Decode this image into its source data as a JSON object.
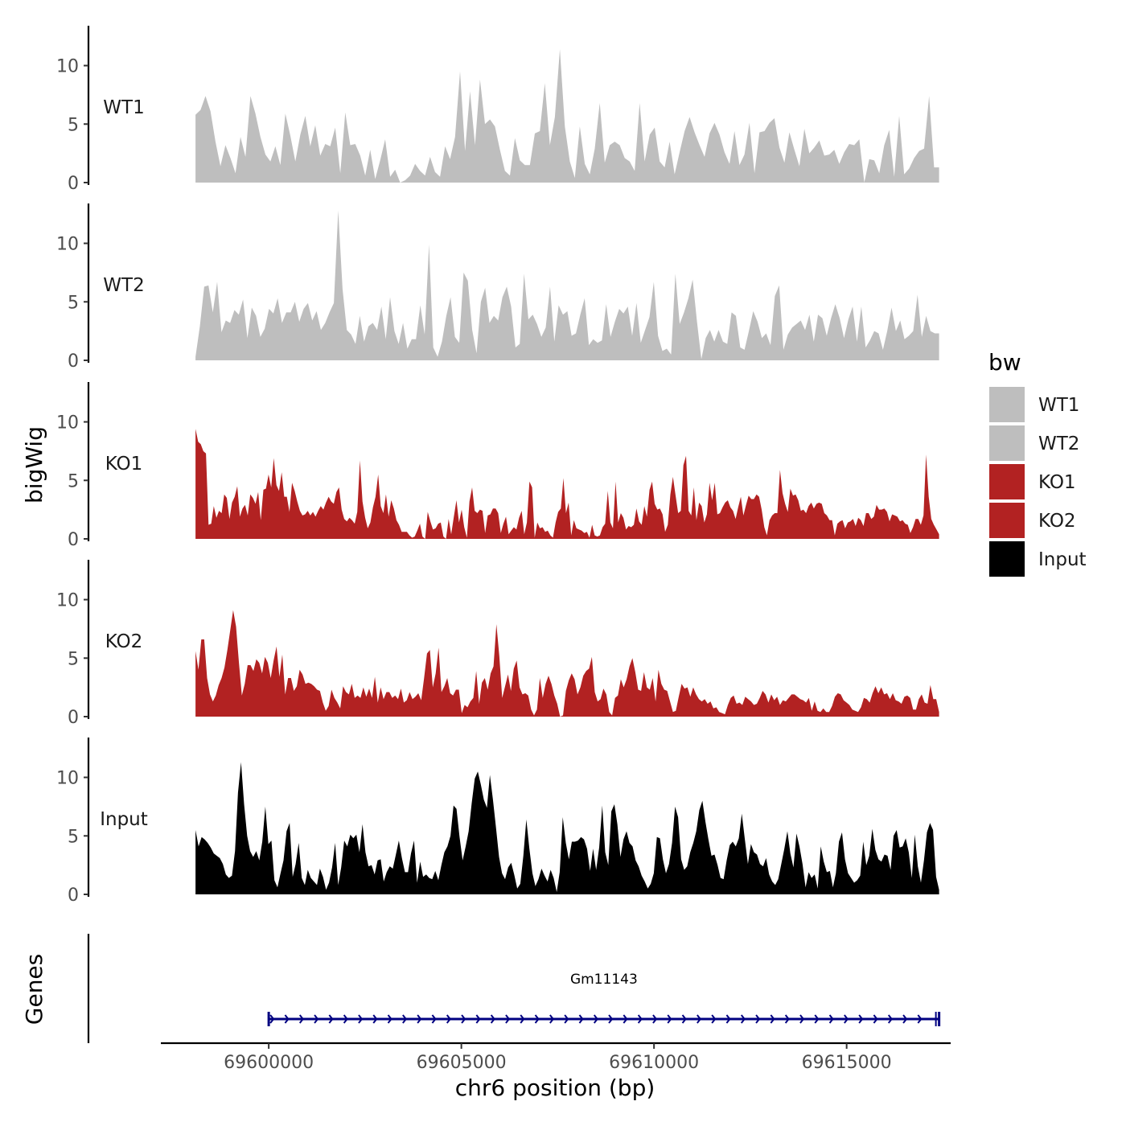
{
  "chart_data": {
    "type": "area",
    "chromosome": "chr6",
    "xlabel": "chr6 position (bp)",
    "ylabel": "bigWig",
    "genes_label": "Genes",
    "xlim": [
      69597200,
      69617700
    ],
    "x_ticks": [
      69600000,
      69605000,
      69610000,
      69615000
    ],
    "x_tick_labels": [
      "69600000",
      "69605000",
      "69610000",
      "69615000"
    ],
    "ylim": [
      0,
      13.2
    ],
    "y_ticks": [
      0,
      5,
      10
    ],
    "y_tick_labels": [
      "0",
      "5",
      "10"
    ],
    "legend": {
      "title": "bw",
      "entries": [
        {
          "label": "WT1",
          "color": "#bebebe"
        },
        {
          "label": "WT2",
          "color": "#bebebe"
        },
        {
          "label": "KO1",
          "color": "#b22222"
        },
        {
          "label": "KO2",
          "color": "#b22222"
        },
        {
          "label": "Input",
          "color": "#000000"
        }
      ]
    },
    "tracks": [
      {
        "name": "WT1",
        "color": "#bebebe",
        "x_start": 69598100,
        "x_end": 69617400,
        "values": [
          5.8,
          6.2,
          7.4,
          6.1,
          3.5,
          1.4,
          3.2,
          2.1,
          0.8,
          3.9,
          2.2,
          7.4,
          5.9,
          3.9,
          2.4,
          1.8,
          3.1,
          1.5,
          5.9,
          4.0,
          1.8,
          4.1,
          5.7,
          3.1,
          4.9,
          2.3,
          3.3,
          3.1,
          4.7,
          0.8,
          6.0,
          3.2,
          3.3,
          2.3,
          0.6,
          2.8,
          0.3,
          1.9,
          3.7,
          0.5,
          1.1,
          0.0,
          0.2,
          0.6,
          1.6,
          1.0,
          0.6,
          2.2,
          0.9,
          0.5,
          3.1,
          2.0,
          3.9,
          9.5,
          2.7,
          7.8,
          3.2,
          8.8,
          5.0,
          5.4,
          4.8,
          2.8,
          1.0,
          0.6,
          3.8,
          1.9,
          1.5,
          1.5,
          4.2,
          4.4,
          8.5,
          3.2,
          5.6,
          11.4,
          4.8,
          1.8,
          0.4,
          4.8,
          1.6,
          0.7,
          2.9,
          6.8,
          1.7,
          3.2,
          3.5,
          3.2,
          2.1,
          1.8,
          1.0,
          6.8,
          1.8,
          4.1,
          4.7,
          1.8,
          1.3,
          3.5,
          0.7,
          2.6,
          4.4,
          5.6,
          4.3,
          3.2,
          2.2,
          4.2,
          5.1,
          4.1,
          2.6,
          1.6,
          4.4,
          1.5,
          2.4,
          5.1,
          0.8,
          4.3,
          4.4,
          5.1,
          5.5,
          3.0,
          1.7,
          4.3,
          2.8,
          1.4,
          4.6,
          2.5,
          3.0,
          3.6,
          2.3,
          2.4,
          2.8,
          1.6,
          2.6,
          3.3,
          3.2,
          3.7,
          0.0,
          2.0,
          1.9,
          0.8,
          3.2,
          4.5,
          0.5,
          5.7,
          0.7,
          1.2,
          2.1,
          2.7,
          2.9,
          7.4,
          1.3,
          1.3
        ]
      },
      {
        "name": "WT2",
        "color": "#bebebe",
        "x_start": 69598100,
        "x_end": 69617400,
        "values": [
          0.3,
          2.9,
          6.3,
          6.4,
          4.1,
          6.7,
          2.4,
          3.4,
          3.2,
          4.3,
          3.9,
          5.2,
          1.9,
          4.5,
          3.8,
          2.0,
          2.7,
          4.4,
          4.0,
          5.3,
          3.2,
          4.1,
          4.1,
          5.0,
          3.3,
          4.4,
          4.9,
          3.4,
          4.2,
          2.6,
          3.2,
          4.1,
          4.9,
          12.8,
          6.1,
          2.6,
          2.2,
          1.4,
          3.8,
          1.6,
          2.9,
          3.2,
          2.6,
          4.6,
          1.8,
          5.4,
          2.5,
          1.4,
          3.2,
          1.0,
          1.8,
          1.8,
          4.7,
          2.2,
          9.9,
          1.1,
          0.3,
          1.6,
          3.8,
          5.4,
          2.0,
          1.5,
          7.5,
          6.8,
          2.6,
          0.6,
          5.0,
          6.2,
          3.2,
          3.8,
          3.4,
          5.4,
          6.3,
          4.6,
          1.1,
          1.4,
          7.4,
          3.5,
          3.9,
          3.1,
          2.0,
          2.8,
          6.3,
          1.6,
          4.7,
          3.9,
          4.2,
          2.1,
          2.3,
          3.9,
          5.3,
          1.3,
          1.8,
          1.5,
          1.7,
          4.8,
          2.0,
          3.3,
          4.4,
          4.0,
          4.6,
          2.1,
          4.9,
          1.5,
          2.6,
          3.7,
          6.7,
          2.1,
          0.8,
          1.0,
          0.5,
          7.4,
          3.1,
          4.1,
          5.3,
          6.9,
          3.3,
          0.1,
          1.9,
          2.6,
          1.6,
          2.6,
          1.6,
          1.4,
          4.1,
          3.8,
          1.1,
          0.9,
          2.5,
          4.2,
          3.3,
          1.9,
          2.3,
          1.3,
          5.5,
          6.4,
          0.9,
          2.2,
          2.8,
          3.1,
          3.4,
          2.6,
          3.9,
          1.6,
          3.9,
          3.6,
          2.1,
          3.6,
          4.8,
          3.6,
          1.9,
          3.5,
          4.6,
          1.6,
          4.6,
          1.1,
          1.7,
          2.5,
          2.3,
          0.9,
          2.5,
          4.5,
          2.5,
          3.4,
          1.8,
          2.1,
          2.5,
          5.6,
          2.0,
          3.8,
          2.5,
          2.3,
          2.3
        ]
      },
      {
        "name": "KO1",
        "color": "#b22222",
        "x_start": 69598100,
        "x_end": 69617400,
        "values": [
          9.4,
          8.3,
          8.1,
          7.5,
          7.3,
          1.2,
          1.3,
          2.8,
          1.8,
          2.4,
          2.2,
          3.8,
          3.5,
          1.7,
          3.1,
          3.6,
          4.5,
          1.9,
          2.6,
          2.9,
          2.0,
          3.8,
          3.5,
          3.0,
          4.0,
          1.6,
          4.2,
          4.3,
          5.5,
          4.4,
          6.9,
          4.6,
          4.1,
          5.7,
          3.6,
          3.6,
          2.3,
          4.8,
          4.1,
          3.2,
          2.4,
          2.0,
          2.1,
          2.4,
          2.0,
          2.3,
          1.9,
          2.4,
          2.8,
          2.5,
          3.1,
          3.6,
          3.2,
          3.0,
          4.0,
          4.4,
          2.5,
          1.7,
          1.5,
          1.8,
          1.6,
          1.3,
          2.3,
          6.7,
          3.2,
          1.8,
          0.9,
          1.4,
          2.7,
          3.6,
          5.5,
          2.8,
          2.2,
          3.8,
          1.9,
          3.3,
          2.6,
          1.6,
          1.2,
          0.6,
          0.6,
          0.6,
          0.3,
          0.1,
          0.2,
          0.7,
          1.3,
          0.2,
          0.0,
          2.3,
          1.5,
          0.8,
          0.9,
          1.3,
          1.4,
          0.2,
          0.0,
          1.7,
          0.4,
          1.9,
          3.3,
          1.4,
          2.5,
          1.0,
          0.1,
          3.2,
          4.4,
          2.4,
          2.2,
          2.5,
          2.4,
          0.5,
          2.0,
          2.1,
          2.6,
          2.6,
          2.2,
          0.5,
          1.3,
          1.9,
          0.4,
          0.7,
          1.0,
          0.8,
          1.8,
          2.4,
          0.4,
          1.4,
          4.9,
          4.4,
          0.1,
          1.4,
          0.9,
          1.0,
          0.6,
          0.7,
          0.3,
          0.1,
          1.4,
          2.3,
          2.6,
          5.2,
          2.2,
          3.1,
          0.3,
          1.6,
          0.9,
          0.8,
          0.7,
          0.5,
          0.6,
          0.1,
          1.2,
          0.3,
          0.2,
          0.3,
          1.0,
          1.3,
          4.1,
          1.4,
          0.9,
          4.9,
          1.4,
          2.2,
          1.8,
          0.8,
          1.1,
          1.0,
          1.2,
          2.6,
          1.5,
          1.2,
          2.8,
          1.9,
          4.2,
          4.9,
          3.0,
          2.5,
          2.6,
          2.1,
          0.6,
          1.2,
          3.8,
          5.3,
          3.7,
          2.2,
          2.4,
          6.3,
          7.1,
          2.4,
          2.0,
          4.4,
          1.6,
          3.1,
          2.8,
          1.4,
          2.1,
          4.8,
          3.3,
          4.8,
          2.1,
          2.2,
          2.7,
          3.1,
          3.3,
          2.7,
          2.4,
          1.7,
          2.7,
          3.6,
          2.0,
          2.9,
          3.7,
          3.4,
          3.4,
          3.8,
          3.6,
          2.5,
          1.0,
          0.3,
          1.6,
          2.0,
          2.2,
          2.2,
          5.9,
          3.9,
          3.0,
          2.3,
          4.3,
          3.7,
          3.8,
          3.3,
          2.4,
          2.5,
          2.2,
          2.8,
          3.1,
          2.6,
          3.0,
          3.1,
          3.0,
          2.2,
          2.0,
          1.6,
          1.6,
          0.3,
          1.3,
          1.5,
          1.6,
          0.9,
          1.4,
          1.5,
          1.7,
          1.1,
          1.8,
          1.6,
          1.1,
          2.2,
          2.2,
          1.7,
          1.9,
          2.9,
          2.5,
          2.5,
          2.6,
          2.3,
          1.5,
          2.1,
          2.0,
          1.9,
          1.5,
          1.6,
          1.3,
          1.2,
          0.5,
          1.0,
          1.7,
          1.7,
          1.2,
          2.0,
          7.2,
          3.6,
          1.7,
          1.2,
          0.8,
          0.4
        ]
      },
      {
        "name": "KO2",
        "color": "#b22222",
        "x_start": 69598100,
        "x_end": 69617400,
        "values": [
          5.6,
          4.0,
          6.6,
          6.6,
          3.3,
          1.9,
          1.3,
          1.8,
          2.7,
          3.3,
          4.2,
          5.7,
          7.4,
          9.1,
          7.7,
          4.6,
          1.8,
          2.8,
          4.4,
          4.4,
          3.9,
          4.9,
          4.6,
          3.7,
          5.1,
          4.6,
          3.3,
          4.8,
          6.0,
          3.4,
          5.3,
          1.9,
          3.3,
          3.3,
          2.2,
          2.6,
          4.0,
          3.6,
          2.8,
          2.9,
          2.8,
          2.6,
          2.3,
          2.2,
          1.2,
          0.5,
          0.9,
          2.3,
          1.6,
          1.2,
          0.7,
          2.6,
          2.1,
          1.9,
          2.8,
          1.6,
          1.8,
          1.6,
          2.5,
          1.7,
          2.4,
          1.6,
          3.4,
          1.2,
          2.5,
          1.5,
          2.1,
          2.1,
          1.6,
          1.8,
          1.5,
          2.4,
          1.2,
          1.4,
          2.1,
          1.5,
          1.7,
          2.0,
          1.4,
          3.3,
          5.4,
          5.7,
          2.5,
          3.7,
          5.9,
          2.1,
          2.6,
          3.3,
          2.0,
          1.8,
          2.3,
          2.3,
          0.3,
          1.0,
          0.8,
          1.3,
          1.6,
          3.9,
          1.1,
          2.9,
          3.3,
          2.3,
          3.7,
          4.3,
          7.9,
          5.2,
          1.6,
          2.6,
          3.6,
          2.2,
          4.1,
          4.8,
          2.5,
          1.9,
          2.0,
          1.8,
          0.6,
          0.1,
          0.6,
          3.3,
          1.6,
          2.8,
          3.5,
          2.8,
          1.8,
          1.1,
          0.0,
          0.1,
          2.2,
          3.1,
          3.7,
          3.2,
          1.9,
          2.5,
          3.5,
          3.9,
          4.1,
          5.1,
          2.1,
          1.3,
          1.5,
          2.4,
          1.9,
          0.4,
          0.1,
          1.6,
          1.8,
          3.2,
          2.5,
          3.2,
          4.3,
          5.0,
          3.8,
          2.3,
          2.2,
          3.8,
          2.5,
          2.3,
          3.3,
          1.3,
          4.0,
          2.8,
          2.3,
          2.2,
          1.3,
          0.4,
          0.5,
          1.7,
          2.8,
          2.4,
          2.5,
          1.7,
          2.5,
          1.9,
          1.5,
          1.3,
          1.5,
          1.1,
          1.3,
          0.7,
          0.8,
          0.4,
          0.3,
          0.2,
          1.0,
          1.6,
          1.8,
          1.1,
          1.2,
          1.0,
          1.7,
          1.5,
          1.3,
          1.0,
          1.1,
          1.6,
          2.2,
          1.9,
          1.2,
          1.9,
          1.4,
          1.7,
          1.0,
          1.4,
          1.3,
          1.6,
          1.9,
          1.9,
          1.7,
          1.5,
          1.4,
          1.2,
          1.6,
          0.5,
          1.3,
          0.5,
          0.4,
          0.7,
          0.4,
          0.4,
          0.9,
          1.7,
          2.0,
          1.9,
          1.4,
          1.2,
          1.0,
          0.6,
          0.5,
          0.4,
          0.8,
          1.6,
          1.5,
          1.2,
          2.0,
          2.6,
          2.0,
          2.5,
          1.9,
          2.0,
          1.5,
          2.0,
          1.4,
          1.3,
          1.1,
          1.7,
          1.8,
          1.6,
          0.6,
          0.6,
          1.5,
          1.9,
          1.2,
          1.1,
          2.7,
          1.5,
          1.5,
          0.4
        ]
      },
      {
        "name": "Input",
        "color": "#000000",
        "x_start": 69598100,
        "x_end": 69617400,
        "values": [
          5.5,
          4.1,
          4.9,
          4.7,
          4.4,
          4.0,
          3.5,
          3.3,
          3.1,
          2.6,
          1.7,
          1.4,
          1.6,
          3.7,
          8.7,
          11.3,
          7.7,
          5.0,
          3.7,
          3.2,
          3.7,
          2.9,
          4.5,
          7.5,
          4.3,
          4.6,
          1.2,
          0.6,
          1.8,
          2.9,
          5.4,
          6.1,
          1.5,
          2.6,
          4.4,
          1.4,
          0.8,
          2.1,
          1.4,
          1.1,
          0.8,
          2.2,
          1.5,
          0.4,
          1.0,
          2.3,
          4.4,
          0.8,
          2.3,
          4.6,
          4.1,
          5.1,
          4.8,
          5.1,
          3.6,
          6.0,
          3.6,
          2.4,
          2.5,
          1.7,
          2.9,
          3.0,
          1.1,
          1.9,
          2.4,
          2.2,
          3.4,
          4.6,
          3.1,
          1.9,
          1.9,
          3.5,
          4.6,
          1.0,
          2.8,
          1.5,
          1.7,
          1.4,
          1.3,
          2.0,
          1.2,
          2.5,
          3.6,
          4.1,
          5.0,
          7.6,
          7.3,
          4.9,
          2.9,
          4.1,
          5.4,
          7.8,
          9.9,
          10.5,
          9.4,
          8.1,
          7.4,
          10.2,
          8.1,
          5.7,
          3.2,
          1.8,
          1.3,
          2.3,
          2.7,
          1.7,
          0.5,
          0.9,
          3.3,
          6.4,
          3.9,
          1.8,
          0.7,
          1.3,
          2.2,
          1.6,
          1.1,
          2.1,
          1.4,
          0.2,
          1.9,
          6.6,
          4.4,
          3.0,
          4.5,
          4.5,
          4.6,
          4.9,
          4.7,
          3.9,
          2.0,
          3.9,
          2.1,
          4.0,
          7.6,
          3.6,
          2.5,
          7.1,
          7.7,
          6.0,
          3.2,
          4.7,
          5.4,
          4.4,
          4.1,
          2.9,
          2.4,
          1.6,
          1.1,
          0.5,
          0.9,
          1.8,
          4.9,
          4.8,
          3.0,
          1.8,
          2.6,
          4.4,
          7.5,
          6.6,
          3.0,
          2.1,
          2.4,
          3.6,
          4.4,
          5.4,
          7.2,
          8.0,
          6.2,
          4.7,
          3.3,
          3.4,
          2.5,
          1.4,
          1.3,
          2.9,
          4.2,
          4.5,
          4.1,
          4.8,
          6.9,
          4.7,
          2.6,
          4.3,
          3.6,
          3.4,
          2.6,
          2.4,
          3.1,
          1.7,
          1.1,
          0.8,
          1.3,
          2.6,
          3.9,
          5.4,
          3.5,
          2.3,
          5.2,
          4.1,
          2.6,
          0.6,
          1.9,
          1.4,
          1.7,
          0.5,
          4.1,
          2.8,
          1.9,
          2.0,
          0.6,
          1.8,
          4.5,
          5.3,
          3.0,
          1.8,
          1.4,
          1.0,
          1.2,
          1.6,
          4.5,
          2.5,
          3.3,
          5.6,
          3.8,
          3.0,
          2.8,
          3.4,
          3.3,
          2.1,
          5.0,
          5.5,
          4.0,
          4.1,
          4.8,
          3.6,
          1.4,
          5.1,
          2.4,
          1.0,
          2.9,
          5.3,
          6.1,
          5.5,
          1.5,
          0.4
        ]
      }
    ],
    "genes": [
      {
        "name": "Gm11143",
        "start": 69600000,
        "end": 69617400,
        "strand": "+",
        "color": "#000080"
      }
    ]
  }
}
